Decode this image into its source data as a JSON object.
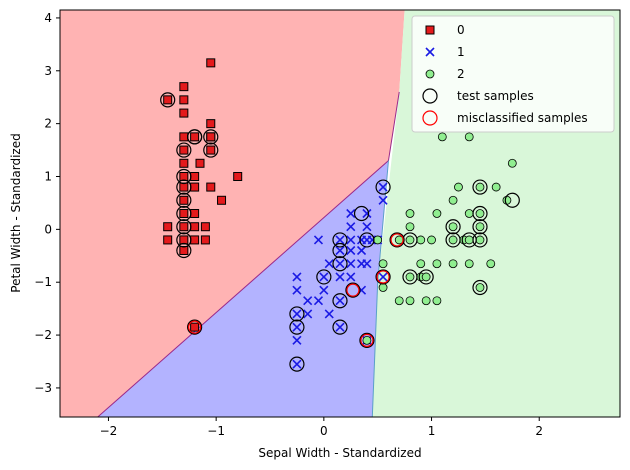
{
  "chart_data": {
    "type": "scatter",
    "title": "",
    "xlabel": "Sepal Width - Standardized",
    "ylabel": "Petal Width - Standardized",
    "xlim": [
      -2.45,
      2.75
    ],
    "ylim": [
      -3.55,
      4.15
    ],
    "xticks": [
      -2,
      -1,
      0,
      1,
      2
    ],
    "yticks": [
      -3,
      -2,
      -1,
      0,
      1,
      2,
      3,
      4
    ],
    "grid": false,
    "legend_position": "top-right",
    "regions": [
      {
        "class": "0",
        "color": "#ffb3b3"
      },
      {
        "class": "1",
        "color": "#b3b3ff"
      },
      {
        "class": "2",
        "color": "#d9f7d9"
      }
    ],
    "decision_boundaries": [
      {
        "between": [
          "0",
          "1"
        ],
        "points": [
          [
            -2.1,
            -3.55
          ],
          [
            0.6,
            1.3
          ],
          [
            0.7,
            2.6
          ]
        ]
      },
      {
        "between": [
          "0",
          "2"
        ],
        "points": [
          [
            0.7,
            2.6
          ],
          [
            0.75,
            4.15
          ]
        ]
      },
      {
        "between": [
          "1",
          "2"
        ],
        "points": [
          [
            0.45,
            -3.55
          ],
          [
            0.5,
            -1.0
          ],
          [
            0.6,
            1.3
          ]
        ]
      }
    ],
    "series": [
      {
        "name": "0",
        "marker": "square",
        "color": "#e41a1c",
        "points": [
          [
            -1.45,
            2.45
          ],
          [
            -1.3,
            2.7
          ],
          [
            -1.3,
            2.2
          ],
          [
            -1.3,
            1.75
          ],
          [
            -1.3,
            1.5
          ],
          [
            -1.3,
            1.25
          ],
          [
            -1.3,
            1.0
          ],
          [
            -1.3,
            0.8
          ],
          [
            -1.3,
            0.55
          ],
          [
            -1.3,
            0.3
          ],
          [
            -1.3,
            0.05
          ],
          [
            -1.3,
            -0.2
          ],
          [
            -1.3,
            -0.4
          ],
          [
            -1.2,
            1.75
          ],
          [
            -1.2,
            1.0
          ],
          [
            -1.2,
            0.8
          ],
          [
            -1.2,
            0.3
          ],
          [
            -1.2,
            0.05
          ],
          [
            -1.2,
            -0.2
          ],
          [
            -1.2,
            -1.85
          ],
          [
            -1.1,
            0.05
          ],
          [
            -1.1,
            -0.2
          ],
          [
            -1.05,
            3.15
          ],
          [
            -1.05,
            2.0
          ],
          [
            -1.05,
            1.75
          ],
          [
            -1.05,
            1.5
          ],
          [
            -1.05,
            0.8
          ],
          [
            -0.95,
            0.55
          ],
          [
            -0.8,
            1.0
          ],
          [
            -1.45,
            0.05
          ],
          [
            -1.45,
            -0.2
          ],
          [
            -1.3,
            2.45
          ],
          [
            -1.05,
            1.75
          ],
          [
            -1.15,
            1.25
          ]
        ]
      },
      {
        "name": "1",
        "marker": "x",
        "color": "#1a1ae4",
        "points": [
          [
            -0.25,
            -0.9
          ],
          [
            -0.25,
            -1.15
          ],
          [
            -0.25,
            -1.6
          ],
          [
            -0.25,
            -1.85
          ],
          [
            -0.25,
            -2.1
          ],
          [
            -0.25,
            -2.55
          ],
          [
            -0.15,
            -1.35
          ],
          [
            -0.15,
            -1.6
          ],
          [
            -0.05,
            -0.2
          ],
          [
            -0.05,
            -1.35
          ],
          [
            0.0,
            -0.9
          ],
          [
            0.0,
            -1.15
          ],
          [
            0.05,
            -0.65
          ],
          [
            0.05,
            -1.6
          ],
          [
            0.15,
            -0.2
          ],
          [
            0.15,
            -0.4
          ],
          [
            0.15,
            -0.65
          ],
          [
            0.15,
            -0.9
          ],
          [
            0.15,
            -1.35
          ],
          [
            0.15,
            -1.85
          ],
          [
            0.25,
            0.3
          ],
          [
            0.25,
            0.05
          ],
          [
            0.25,
            -0.2
          ],
          [
            0.25,
            -0.4
          ],
          [
            0.25,
            -0.65
          ],
          [
            0.25,
            -0.9
          ],
          [
            0.35,
            -0.2
          ],
          [
            0.35,
            -0.4
          ],
          [
            0.35,
            -0.65
          ],
          [
            0.35,
            -1.15
          ],
          [
            0.4,
            0.3
          ],
          [
            0.4,
            0.05
          ],
          [
            0.4,
            -0.2
          ],
          [
            0.4,
            -0.65
          ],
          [
            0.4,
            -2.1
          ],
          [
            0.5,
            -0.2
          ],
          [
            0.55,
            0.8
          ],
          [
            0.55,
            0.55
          ],
          [
            0.55,
            -0.9
          ],
          [
            0.45,
            -0.2
          ]
        ]
      },
      {
        "name": "2",
        "marker": "circle",
        "color": "#90ee90",
        "points": [
          [
            0.4,
            -2.1
          ],
          [
            0.5,
            -0.2
          ],
          [
            0.55,
            -0.65
          ],
          [
            0.55,
            -1.1
          ],
          [
            0.7,
            -0.2
          ],
          [
            0.7,
            -1.35
          ],
          [
            0.8,
            0.3
          ],
          [
            0.8,
            0.05
          ],
          [
            0.8,
            -0.2
          ],
          [
            0.8,
            -0.9
          ],
          [
            0.8,
            -1.35
          ],
          [
            0.9,
            -0.2
          ],
          [
            0.9,
            -0.65
          ],
          [
            0.9,
            -0.9
          ],
          [
            0.95,
            -0.9
          ],
          [
            0.95,
            -1.35
          ],
          [
            1.0,
            -0.2
          ],
          [
            1.05,
            0.3
          ],
          [
            1.05,
            -0.65
          ],
          [
            1.05,
            -1.35
          ],
          [
            1.1,
            1.75
          ],
          [
            1.2,
            0.55
          ],
          [
            1.2,
            0.05
          ],
          [
            1.2,
            -0.2
          ],
          [
            1.2,
            -0.65
          ],
          [
            1.25,
            0.8
          ],
          [
            1.3,
            -0.2
          ],
          [
            1.35,
            1.75
          ],
          [
            1.35,
            0.3
          ],
          [
            1.35,
            -0.65
          ],
          [
            1.45,
            0.8
          ],
          [
            1.45,
            0.3
          ],
          [
            1.45,
            0.05
          ],
          [
            1.45,
            -0.2
          ],
          [
            1.45,
            -1.1
          ],
          [
            1.55,
            -0.65
          ],
          [
            1.6,
            0.8
          ],
          [
            1.7,
            0.55
          ],
          [
            1.75,
            1.25
          ],
          [
            1.35,
            -0.2
          ]
        ]
      }
    ],
    "test_samples": {
      "name": "test samples",
      "marker": "open-circle",
      "color": "#000000",
      "points": [
        [
          -1.45,
          2.45
        ],
        [
          -1.3,
          1.5
        ],
        [
          -1.3,
          1.0
        ],
        [
          -1.3,
          0.8
        ],
        [
          -1.3,
          0.55
        ],
        [
          -1.3,
          0.3
        ],
        [
          -1.3,
          0.05
        ],
        [
          -1.3,
          -0.2
        ],
        [
          -1.3,
          -0.4
        ],
        [
          -1.2,
          1.75
        ],
        [
          -1.05,
          1.75
        ],
        [
          -1.05,
          1.5
        ],
        [
          -1.2,
          -1.85
        ],
        [
          -0.25,
          -1.6
        ],
        [
          -0.25,
          -1.85
        ],
        [
          -0.25,
          -2.55
        ],
        [
          0.0,
          -0.9
        ],
        [
          0.15,
          -0.2
        ],
        [
          0.15,
          -0.4
        ],
        [
          0.15,
          -0.65
        ],
        [
          0.15,
          -1.35
        ],
        [
          0.15,
          -1.85
        ],
        [
          0.27,
          -1.15
        ],
        [
          0.35,
          0.3
        ],
        [
          0.4,
          -0.2
        ],
        [
          0.4,
          -2.1
        ],
        [
          0.55,
          0.8
        ],
        [
          0.55,
          -0.9
        ],
        [
          0.68,
          -0.2
        ],
        [
          0.8,
          -0.2
        ],
        [
          0.8,
          -0.9
        ],
        [
          0.95,
          -0.9
        ],
        [
          1.2,
          0.05
        ],
        [
          1.2,
          -0.2
        ],
        [
          1.35,
          -0.2
        ],
        [
          1.45,
          0.8
        ],
        [
          1.45,
          0.3
        ],
        [
          1.45,
          0.05
        ],
        [
          1.45,
          -0.2
        ],
        [
          1.45,
          -1.1
        ],
        [
          1.75,
          0.55
        ],
        [
          -1.2,
          1.75
        ]
      ]
    },
    "misclassified_samples": {
      "name": "misclassified samples",
      "marker": "open-circle",
      "color": "#ff0000",
      "points": [
        [
          -1.2,
          -1.85
        ],
        [
          0.27,
          -1.15
        ],
        [
          0.4,
          -2.1
        ],
        [
          0.55,
          -0.9
        ],
        [
          0.68,
          -0.2
        ]
      ]
    },
    "legend": [
      {
        "label": "0",
        "marker": "square",
        "color": "#e41a1c"
      },
      {
        "label": "1",
        "marker": "x",
        "color": "#1a1ae4"
      },
      {
        "label": "2",
        "marker": "circle",
        "color": "#90ee90"
      },
      {
        "label": "test samples",
        "marker": "open-circle",
        "color": "#000000"
      },
      {
        "label": "misclassified samples",
        "marker": "open-circle",
        "color": "#ff0000"
      }
    ]
  }
}
